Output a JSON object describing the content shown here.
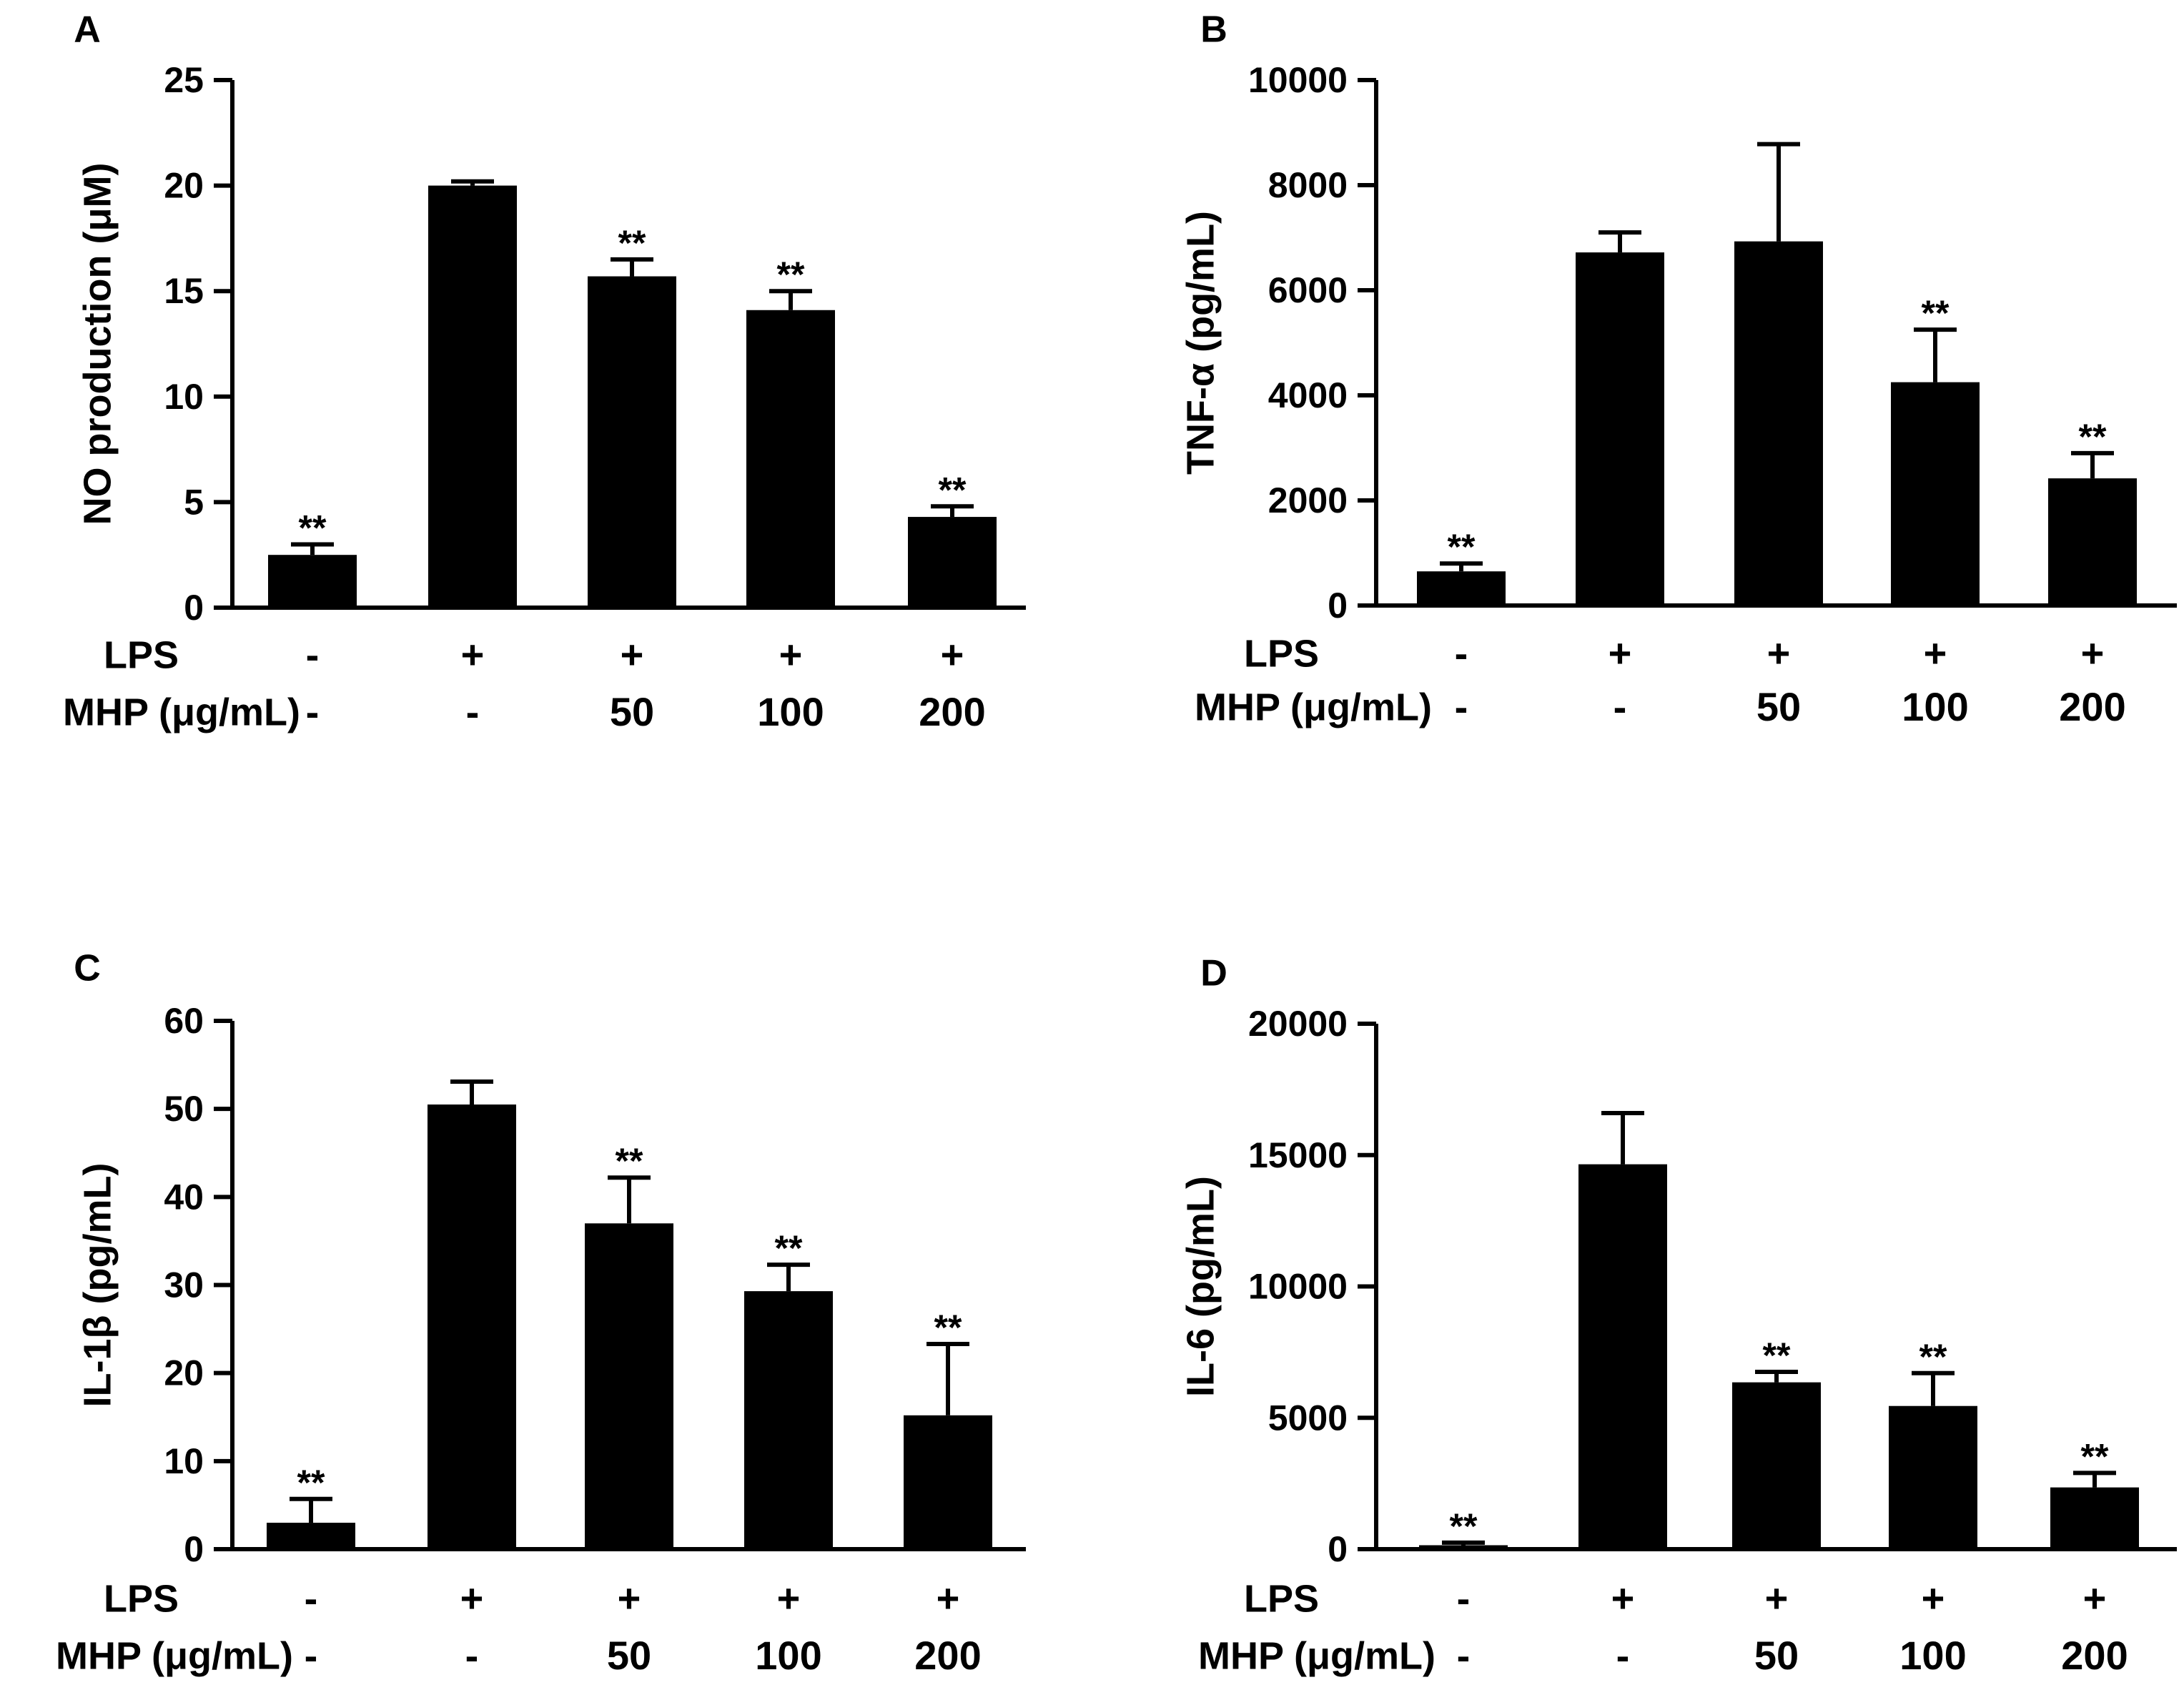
{
  "figure": {
    "row_labels": {
      "lps": "LPS",
      "mhp": "MHP (μg/mL)"
    }
  },
  "chart_data": [
    {
      "panel": "A",
      "type": "bar",
      "ylabel": "NO production (μM)",
      "ylim": [
        0,
        25
      ],
      "yticks": [
        0,
        5,
        10,
        15,
        20,
        25
      ],
      "lps": [
        "-",
        "+",
        "+",
        "+",
        "+"
      ],
      "mhp": [
        "-",
        "-",
        "50",
        "100",
        "200"
      ],
      "values": [
        2.5,
        20.0,
        15.7,
        14.1,
        4.3
      ],
      "errors": [
        0.5,
        0.2,
        0.8,
        0.9,
        0.5
      ],
      "significance": [
        "**",
        "",
        "**",
        "**",
        "**"
      ]
    },
    {
      "panel": "B",
      "type": "bar",
      "ylabel": "TNF-α (pg/mL)",
      "ylim": [
        0,
        10000
      ],
      "yticks": [
        0,
        2000,
        4000,
        6000,
        8000,
        10000
      ],
      "lps": [
        "-",
        "+",
        "+",
        "+",
        "+"
      ],
      "mhp": [
        "-",
        "-",
        "50",
        "100",
        "200"
      ],
      "values": [
        650,
        6720,
        6930,
        4250,
        2420
      ],
      "errors": [
        150,
        380,
        1850,
        1000,
        480
      ],
      "significance": [
        "**",
        "",
        "",
        "**",
        "**"
      ]
    },
    {
      "panel": "C",
      "type": "bar",
      "ylabel": "IL-1β (pg/mL)",
      "ylim": [
        0,
        60
      ],
      "yticks": [
        0,
        10,
        20,
        30,
        40,
        50,
        60
      ],
      "lps": [
        "-",
        "+",
        "+",
        "+",
        "+"
      ],
      "mhp": [
        "-",
        "-",
        "50",
        "100",
        "200"
      ],
      "values": [
        3,
        50.5,
        37,
        29.3,
        15.2
      ],
      "errors": [
        2.7,
        2.6,
        5.2,
        3.0,
        8.1
      ],
      "significance": [
        "**",
        "",
        "**",
        "**",
        "**"
      ]
    },
    {
      "panel": "D",
      "type": "bar",
      "ylabel": "IL-6 (pg/mL)",
      "ylim": [
        0,
        20000
      ],
      "yticks": [
        0,
        5000,
        10000,
        15000,
        20000
      ],
      "lps": [
        "-",
        "+",
        "+",
        "+",
        "+"
      ],
      "mhp": [
        "-",
        "-",
        "50",
        "100",
        "200"
      ],
      "values": [
        150,
        14650,
        6350,
        5450,
        2350
      ],
      "errors": [
        100,
        1950,
        400,
        1250,
        550
      ],
      "significance": [
        "**",
        "",
        "**",
        "**",
        "**"
      ]
    }
  ]
}
